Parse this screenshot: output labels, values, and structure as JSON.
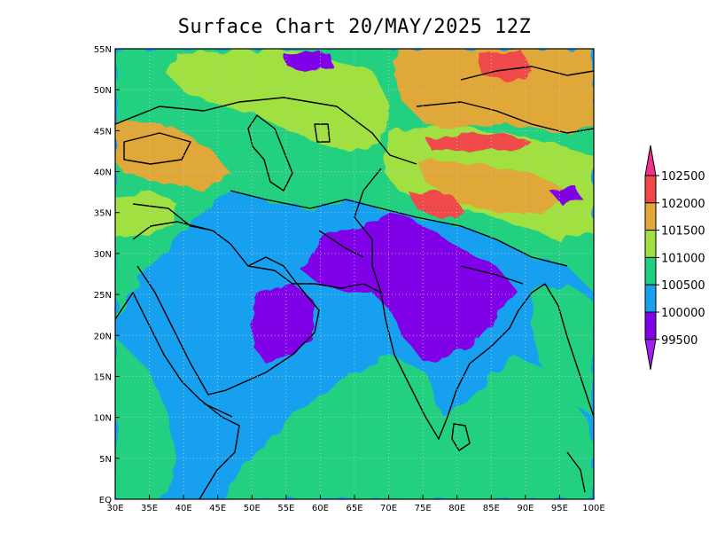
{
  "title": "Surface Chart 20/MAY/2025 12Z",
  "map": {
    "lon_range": [
      30,
      100
    ],
    "lat_range": [
      0,
      55
    ],
    "lon_ticks": [
      "30E",
      "35E",
      "40E",
      "45E",
      "50E",
      "55E",
      "60E",
      "65E",
      "70E",
      "75E",
      "80E",
      "85E",
      "90E",
      "95E",
      "100E"
    ],
    "lat_ticks": [
      "EQ",
      "5N",
      "10N",
      "15N",
      "20N",
      "25N",
      "30N",
      "35N",
      "40N",
      "45N",
      "50N",
      "55N"
    ],
    "grid": true
  },
  "colorbar": {
    "labels": [
      "102500",
      "102000",
      "101500",
      "101000",
      "100500",
      "100000",
      "99500"
    ],
    "colors": [
      "#f0308c",
      "#f04848",
      "#e0a838",
      "#a0e040",
      "#20d080",
      "#18a0f0",
      "#8000e8",
      "#a020f0"
    ]
  }
}
